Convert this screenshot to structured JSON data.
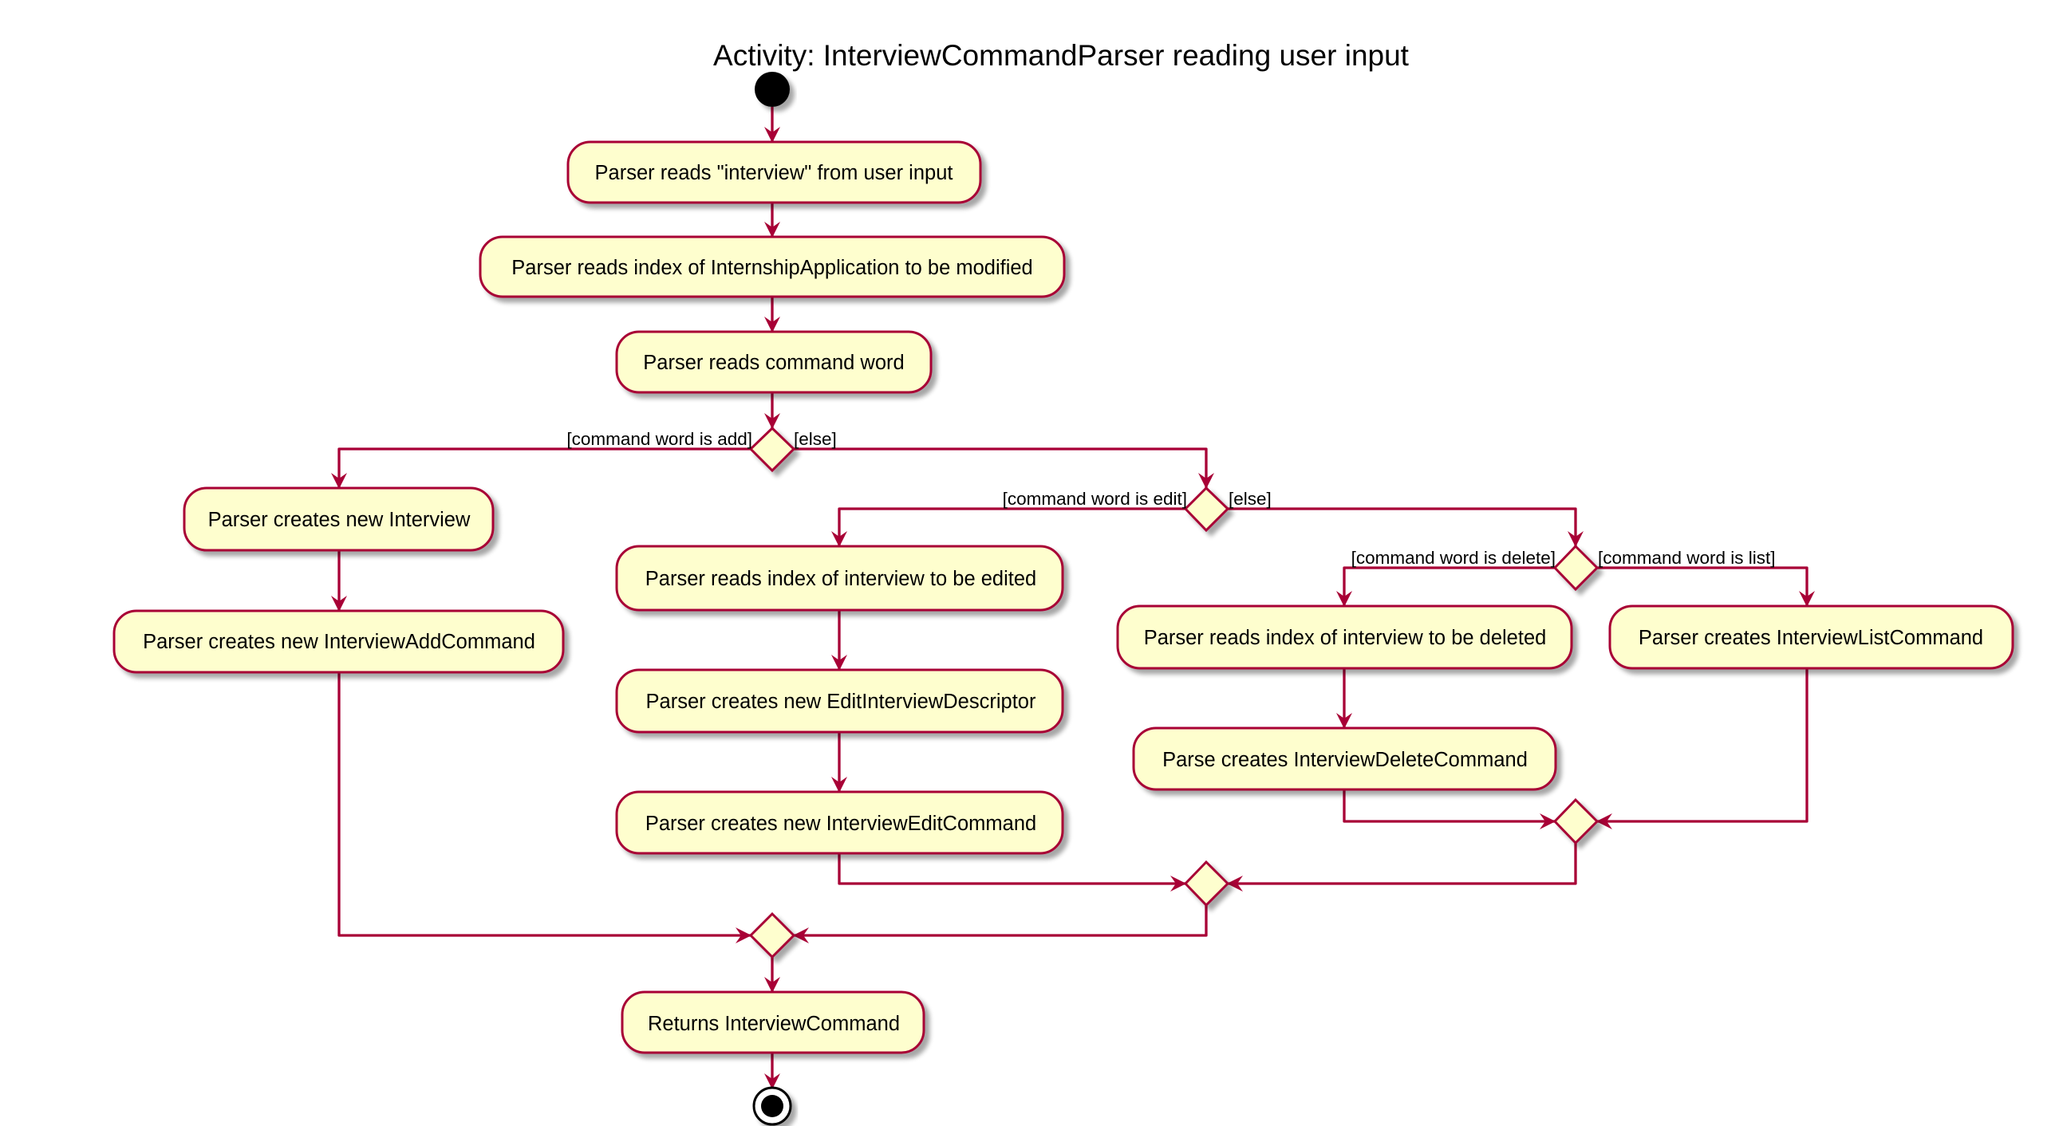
{
  "title": "Activity: InterviewCommandParser reading user input",
  "colors": {
    "node_fill": "#FEFECE",
    "border": "#A80036",
    "edge": "#A80036",
    "start": "#000000",
    "shadow": "#c9c9c9",
    "background": "#FFFFFF"
  },
  "activities": {
    "read_interview": "Parser reads \"interview\" from user input",
    "read_index": "Parser reads index of InternshipApplication to be modified",
    "read_command_word": "Parser reads command word",
    "create_interview": "Parser creates new Interview",
    "create_add_command": "Parser creates new InterviewAddCommand",
    "read_edit_index": "Parser reads index of interview to be edited",
    "create_edit_descriptor": "Parser creates new EditInterviewDescriptor",
    "create_edit_command": "Parser creates new InterviewEditCommand",
    "read_delete_index": "Parser reads index of interview to be deleted",
    "create_delete_command": "Parse creates InterviewDeleteCommand",
    "create_list_command": "Parser creates InterviewListCommand",
    "returns": "Returns InterviewCommand"
  },
  "guards": {
    "is_add": "[command word is add]",
    "else_1": "[else]",
    "is_edit": "[command word is edit]",
    "else_2": "[else]",
    "is_delete": "[command word is delete]",
    "is_list": "[command word is list]"
  }
}
